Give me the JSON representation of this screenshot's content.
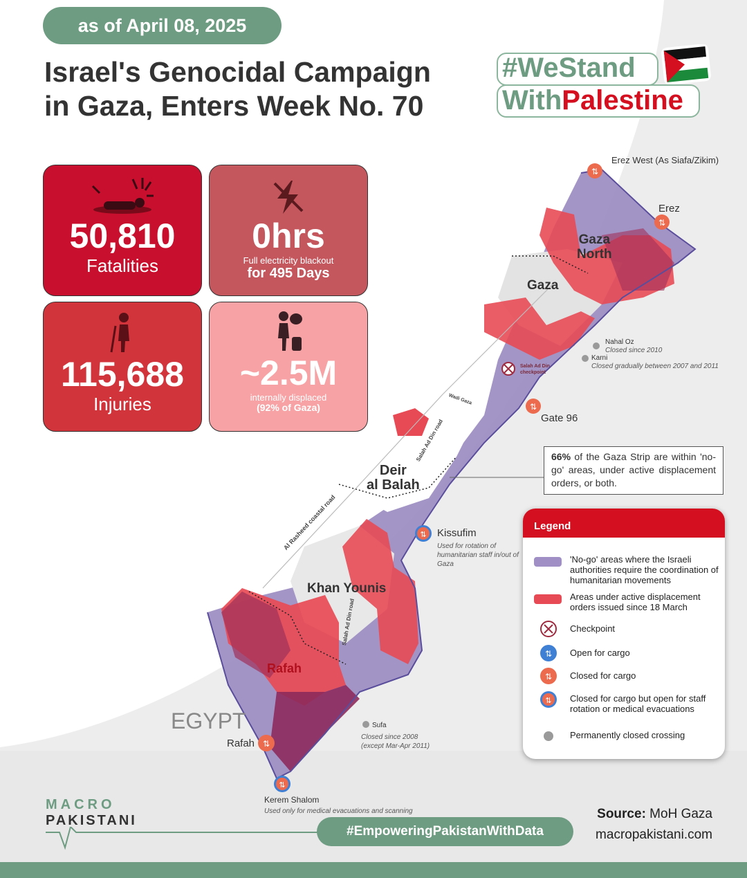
{
  "header": {
    "date": "as of April 08, 2025",
    "title_line1": "Israel's Genocidal Campaign",
    "title_line2": "in Gaza, Enters Week No. 70",
    "hashtag_line1": "#WeStand",
    "hashtag_line2_green": "With",
    "hashtag_line2_red": "Palestine"
  },
  "stats": {
    "fatalities": {
      "value": "50,810",
      "label": "Fatalities",
      "icon": "fallen-person-icon"
    },
    "electricity": {
      "value": "0hrs",
      "label1": "Full electricity blackout",
      "label2": "for 495 Days",
      "icon": "lightning-off-icon"
    },
    "injuries": {
      "value": "115,688",
      "label": "Injuries",
      "icon": "injured-person-crutch-icon"
    },
    "displaced": {
      "value": "~2.5M",
      "label1": "internally displaced",
      "label2": "(92% of Gaza)",
      "icon": "displaced-person-luggage-icon"
    }
  },
  "map": {
    "places": {
      "gaza_north": "Gaza\nNorth",
      "gaza": "Gaza",
      "deir": "Deir\nal Balah",
      "khan_younis": "Khan Younis",
      "rafah_city": "Rafah",
      "egypt": "EGYPT"
    },
    "roads": {
      "coastal": "Al Rasheed coastal road",
      "salah1": "Salah Ad Din road",
      "salah2": "Salah Ad Din road",
      "wadi": "Wadi Gaza"
    },
    "crossings": {
      "erez_west": "Erez West (As Siafa/Zikim)",
      "erez": "Erez",
      "nahal_oz": "Nahal Oz",
      "nahal_oz_note": "Closed since 2010",
      "karni": "Karni",
      "karni_note": "Closed gradually between 2007 and 2011",
      "salah_checkpoint": "Salah Ad Din checkpoint",
      "gate96": "Gate 96",
      "kissufim": "Kissufim",
      "kissufim_note": "Used for rotation of humanitarian staff in/out of Gaza",
      "sufa": "Sufa",
      "sufa_note": "Closed since 2008 (except Mar-Apr 2011)",
      "rafah": "Rafah",
      "kerem": "Kerem Shalom",
      "kerem_note": "Used only for medical evacuations and scanning"
    },
    "info_percent": "66%",
    "info_text": " of the Gaza Strip are within 'no-go' areas, under active displacement orders, or both."
  },
  "legend": {
    "title": "Legend",
    "items": [
      {
        "label": "'No-go' areas where the Israeli authorities require the coordination of humanitarian movements",
        "color": "#9f8fc4"
      },
      {
        "label": "Areas under active displacement orders issued since 18 March",
        "color": "#e84a55"
      },
      {
        "label": "Checkpoint",
        "color": "#9e2a3f"
      },
      {
        "label": "Open for cargo",
        "color": "#3f7fd4"
      },
      {
        "label": "Closed for cargo",
        "color": "#ec6a4e"
      },
      {
        "label": "Closed for cargo but open for staff rotation or medical evacuations",
        "color": "#ec6a4e"
      },
      {
        "label": "Permanently closed crossing",
        "color": "#9a9a9a"
      }
    ]
  },
  "footer": {
    "brand1": "MACRO",
    "brand2": "PAKISTANI",
    "slogan": "#EmpoweringPakistanWithData",
    "source_label": "Source:",
    "source_value": " MoH Gaza",
    "website": "macropakistani.com"
  },
  "colors": {
    "accent_green": "#6e9c82",
    "red": "#d40f1f",
    "nogo": "#9f8fc4",
    "displacement": "#e84a55"
  }
}
